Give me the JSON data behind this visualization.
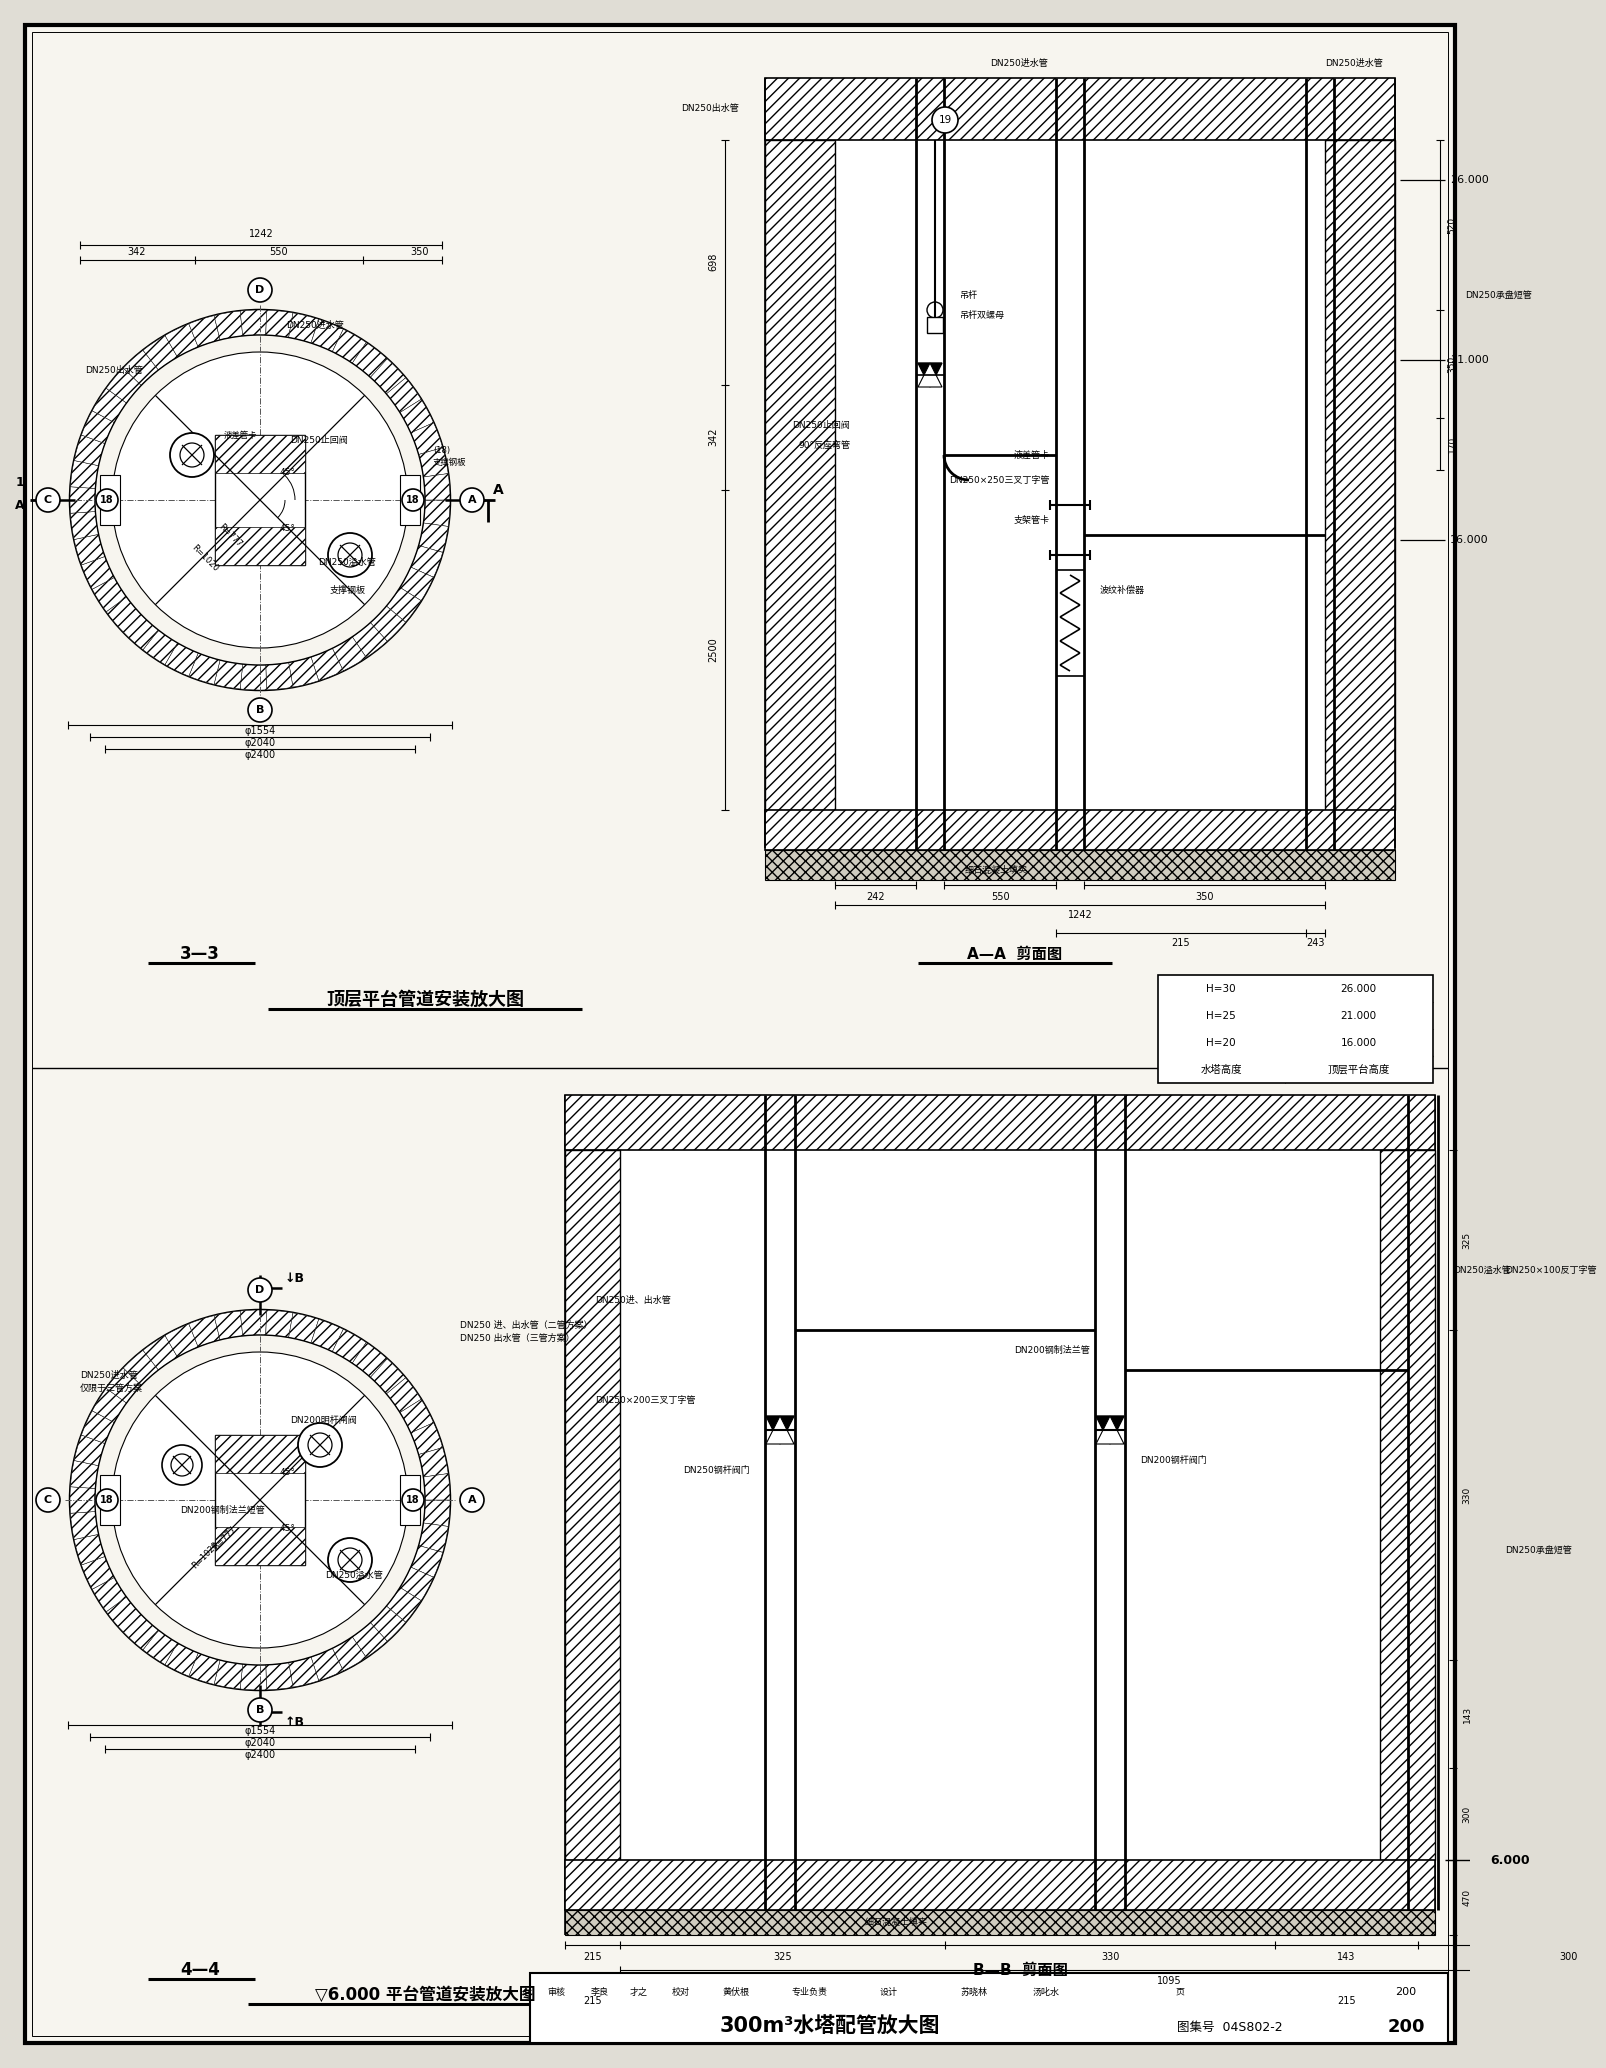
{
  "bg_color": "#e0ddd5",
  "paper_color": "#f7f5ef",
  "title_main": "300m³水塔配管放大图",
  "fig_number": "04S802-2",
  "page_num": "200",
  "top_section_title": "顶层平台管道安装放大图",
  "bottom_section_title": "▽6.000 平台管道安装放大图",
  "label_33": "3—3",
  "label_44": "4—4",
  "label_AA": "A—A  剪面图",
  "label_BB": "B—B  剪面图",
  "table_header1": "水塔高度",
  "table_header2": "顶层平台高度",
  "table_rows": [
    [
      "H=20",
      "16.000"
    ],
    [
      "H=25",
      "21.000"
    ],
    [
      "H=30",
      "26.000"
    ]
  ],
  "elev_26": "26.000",
  "elev_21": "21.000",
  "elev_16": "16.000",
  "elev_6": "6.000",
  "bottom_labels": [
    "审核",
    "李良",
    "才之",
    "校对",
    "黄伏根",
    "专业负责",
    "设计",
    "苏晓林",
    "汤叱水",
    "页"
  ]
}
